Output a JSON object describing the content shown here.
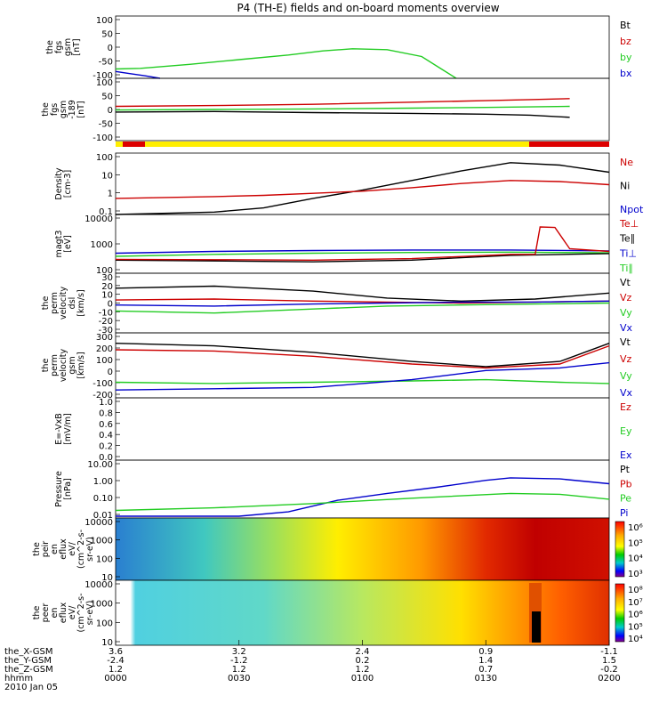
{
  "title": "P4 (TH-E) fields and on-board moments overview",
  "colors": {
    "black": "#000000",
    "red": "#cc0000",
    "green": "#22cc22",
    "blue": "#0000cc",
    "yellow": "#ffee00"
  },
  "chart_data": [
    {
      "id": "fgs-bt",
      "type": "line",
      "ylabel": [
        "the",
        "fgs",
        "gsm",
        "[nT]"
      ],
      "yticks": [
        "100",
        "50",
        "0",
        "-50",
        "-100"
      ],
      "ylim": [
        -100,
        100
      ],
      "legend": [
        {
          "label": "Bt",
          "color": "#000000"
        },
        {
          "label": "bz",
          "color": "#cc0000"
        },
        {
          "label": "by",
          "color": "#22cc22"
        },
        {
          "label": "bx",
          "color": "#0000cc"
        }
      ],
      "series": [
        {
          "name": "by",
          "color": "#22cc22",
          "x": [
            0,
            0.05,
            0.15,
            0.25,
            0.35,
            0.42,
            0.48,
            0.55,
            0.62,
            0.66,
            0.69
          ],
          "y": [
            -70,
            -68,
            -55,
            -40,
            -25,
            -12,
            -5,
            -8,
            -30,
            -70,
            -100
          ]
        },
        {
          "name": "bx",
          "color": "#0000cc",
          "x": [
            0,
            0.03,
            0.06,
            0.09
          ],
          "y": [
            -78,
            -85,
            -92,
            -100
          ]
        }
      ]
    },
    {
      "id": "fgs-gsm",
      "type": "line",
      "ylabel": [
        "the",
        "fgs",
        "gsm",
        "-189",
        "[nT]"
      ],
      "yticks": [
        "100",
        "50",
        "0",
        "-50",
        "-100"
      ],
      "ylim": [
        -120,
        120
      ],
      "series": [
        {
          "name": "bz",
          "color": "#cc0000",
          "x": [
            0,
            0.2,
            0.4,
            0.6,
            0.75,
            0.84,
            0.92
          ],
          "y": [
            12,
            15,
            20,
            28,
            34,
            38,
            42
          ]
        },
        {
          "name": "by",
          "color": "#22cc22",
          "x": [
            0,
            0.2,
            0.4,
            0.6,
            0.75,
            0.84,
            0.92
          ],
          "y": [
            -2,
            0,
            2,
            5,
            8,
            10,
            12
          ]
        },
        {
          "name": "Bt",
          "color": "#000000",
          "x": [
            0,
            0.2,
            0.4,
            0.6,
            0.75,
            0.84,
            0.92
          ],
          "y": [
            -10,
            -8,
            -12,
            -15,
            -18,
            -22,
            -30
          ]
        }
      ]
    },
    {
      "id": "density",
      "type": "line",
      "ylabel": [
        "Density",
        "[cm-3]"
      ],
      "yticks": [
        "100",
        "10",
        "1",
        "0.1"
      ],
      "ylim": [
        0.01,
        300
      ],
      "yscale": "log",
      "legend": [
        {
          "label": "Ne",
          "color": "#cc0000"
        },
        {
          "label": "Ni",
          "color": "#000000"
        },
        {
          "label": "Npot",
          "color": "#0000cc"
        }
      ],
      "series": [
        {
          "name": "Ni",
          "color": "#000000",
          "x": [
            0,
            0.2,
            0.3,
            0.4,
            0.5,
            0.6,
            0.7,
            0.8,
            0.9,
            1
          ],
          "y": [
            0.01,
            0.015,
            0.03,
            0.15,
            0.6,
            3,
            15,
            60,
            40,
            12
          ]
        },
        {
          "name": "Ne",
          "color": "#cc0000",
          "x": [
            0,
            0.2,
            0.3,
            0.4,
            0.5,
            0.6,
            0.7,
            0.8,
            0.9,
            1
          ],
          "y": [
            0.15,
            0.2,
            0.25,
            0.35,
            0.5,
            0.9,
            1.8,
            3,
            2.5,
            1.5
          ]
        }
      ]
    },
    {
      "id": "temperature",
      "type": "line",
      "ylabel": [
        "magt3",
        "[eV]"
      ],
      "yticks": [
        "10000",
        "1000",
        "100"
      ],
      "ylim": [
        30,
        15000
      ],
      "yscale": "log",
      "legend": [
        {
          "label": "Te⊥",
          "color": "#cc0000"
        },
        {
          "label": "Te∥",
          "color": "#000000"
        },
        {
          "label": "Ti⊥",
          "color": "#0000cc"
        },
        {
          "label": "Ti∥",
          "color": "#22cc22"
        }
      ],
      "series": [
        {
          "name": "Ti⊥",
          "color": "#0000cc",
          "x": [
            0,
            0.2,
            0.4,
            0.6,
            0.8,
            1
          ],
          "y": [
            250,
            300,
            330,
            350,
            350,
            320
          ]
        },
        {
          "name": "Ti∥",
          "color": "#22cc22",
          "x": [
            0,
            0.2,
            0.4,
            0.6,
            0.8,
            1
          ],
          "y": [
            180,
            220,
            250,
            270,
            280,
            260
          ]
        },
        {
          "name": "Te∥",
          "color": "#000000",
          "x": [
            0,
            0.2,
            0.4,
            0.6,
            0.8,
            1
          ],
          "y": [
            120,
            110,
            100,
            120,
            200,
            240
          ]
        },
        {
          "name": "Te⊥",
          "color": "#cc0000",
          "x": [
            0,
            0.2,
            0.4,
            0.6,
            0.8,
            0.85,
            0.86,
            0.89,
            0.92,
            1
          ],
          "y": [
            130,
            125,
            120,
            140,
            220,
            220,
            4000,
            3800,
            400,
            300
          ]
        }
      ]
    },
    {
      "id": "perm-velocity",
      "type": "line",
      "ylabel": [
        "the",
        "perm",
        "velocity",
        "dsl",
        "[km/s]"
      ],
      "yticks": [
        "30",
        "20",
        "10",
        "0",
        "-10",
        "-20",
        "-30"
      ],
      "ylim": [
        -30,
        30
      ],
      "legend": [
        {
          "label": "Vt",
          "color": "#000000"
        },
        {
          "label": "Vz",
          "color": "#cc0000"
        },
        {
          "label": "Vy",
          "color": "#22cc22"
        },
        {
          "label": "Vx",
          "color": "#0000cc"
        }
      ],
      "series": [
        {
          "name": "Vt",
          "color": "#000000",
          "x": [
            0,
            0.2,
            0.4,
            0.55,
            0.7,
            0.85,
            1
          ],
          "y": [
            15,
            17,
            12,
            5,
            2,
            4,
            10
          ]
        },
        {
          "name": "Vz",
          "color": "#cc0000",
          "x": [
            0,
            0.2,
            0.4,
            0.55,
            0.7,
            0.85,
            1
          ],
          "y": [
            3,
            4,
            2,
            1,
            0,
            1,
            2
          ]
        },
        {
          "name": "Vx",
          "color": "#0000cc",
          "x": [
            0,
            0.2,
            0.4,
            0.55,
            0.7,
            0.85,
            1
          ],
          "y": [
            -2,
            -3,
            -1,
            0,
            1,
            1,
            2
          ]
        },
        {
          "name": "Vy",
          "color": "#22cc22",
          "x": [
            0,
            0.2,
            0.4,
            0.55,
            0.7,
            0.85,
            1
          ],
          "y": [
            -8,
            -10,
            -6,
            -3,
            -2,
            -1,
            0
          ]
        }
      ]
    },
    {
      "id": "perm-velocity-gsm",
      "type": "line",
      "ylabel": [
        "the",
        "perm",
        "velocity",
        "gsm",
        "[km/s]"
      ],
      "yticks": [
        "300",
        "200",
        "100",
        "0",
        "-100",
        "-200"
      ],
      "ylim": [
        -200,
        300
      ],
      "legend": [
        {
          "label": "Vt",
          "color": "#000000"
        },
        {
          "label": "Vz",
          "color": "#cc0000"
        },
        {
          "label": "Vy",
          "color": "#22cc22"
        },
        {
          "label": "Vx",
          "color": "#0000cc"
        }
      ],
      "series": [
        {
          "name": "Vt",
          "color": "#000000",
          "x": [
            0,
            0.2,
            0.4,
            0.6,
            0.75,
            0.9,
            1
          ],
          "y": [
            220,
            200,
            150,
            80,
            40,
            80,
            220
          ]
        },
        {
          "name": "Vz",
          "color": "#cc0000",
          "x": [
            0,
            0.2,
            0.4,
            0.6,
            0.75,
            0.9,
            1
          ],
          "y": [
            170,
            160,
            120,
            60,
            30,
            60,
            200
          ]
        },
        {
          "name": "Vy",
          "color": "#22cc22",
          "x": [
            0,
            0.2,
            0.4,
            0.6,
            0.75,
            0.9,
            1
          ],
          "y": [
            -80,
            -90,
            -80,
            -70,
            -60,
            -80,
            -90
          ]
        },
        {
          "name": "Vx",
          "color": "#0000cc",
          "x": [
            0,
            0.2,
            0.4,
            0.6,
            0.75,
            0.9,
            1
          ],
          "y": [
            -140,
            -130,
            -120,
            -60,
            10,
            30,
            70
          ]
        }
      ]
    },
    {
      "id": "efield",
      "type": "line",
      "ylabel": [
        "E=-VxB",
        "[mV/m]"
      ],
      "yticks": [
        "1.0",
        "0.8",
        "0.6",
        "0.4",
        "0.2",
        "0.0"
      ],
      "ylim": [
        0,
        1
      ],
      "legend": [
        {
          "label": "Ez",
          "color": "#cc0000"
        },
        {
          "label": "Ey",
          "color": "#22cc22"
        },
        {
          "label": "Ex",
          "color": "#0000cc"
        }
      ],
      "series": []
    },
    {
      "id": "pressure",
      "type": "line",
      "ylabel": [
        "Pressure",
        "[nPa]"
      ],
      "yticks": [
        "10.00",
        "1.00",
        "0.10",
        "0.01"
      ],
      "ylim": [
        0.003,
        30
      ],
      "yscale": "log",
      "legend": [
        {
          "label": "Pt",
          "color": "#000000"
        },
        {
          "label": "Pb",
          "color": "#cc0000"
        },
        {
          "label": "Pe",
          "color": "#22cc22"
        },
        {
          "label": "Pi",
          "color": "#0000cc"
        }
      ],
      "series": [
        {
          "name": "Pi",
          "color": "#0000cc",
          "x": [
            0,
            0.25,
            0.35,
            0.45,
            0.55,
            0.65,
            0.75,
            0.8,
            0.9,
            1
          ],
          "y": [
            0.004,
            0.004,
            0.008,
            0.05,
            0.15,
            0.4,
            1.2,
            1.8,
            1.5,
            0.7
          ]
        },
        {
          "name": "Pe",
          "color": "#22cc22",
          "x": [
            0,
            0.2,
            0.4,
            0.6,
            0.8,
            0.9,
            1
          ],
          "y": [
            0.01,
            0.015,
            0.03,
            0.07,
            0.15,
            0.13,
            0.06
          ]
        }
      ]
    },
    {
      "id": "peir-spectrogram",
      "type": "heatmap",
      "ylabel": [
        "the",
        "peir",
        "en",
        "eflux",
        "eV/",
        "(cm^2-s-",
        "sr-eV)"
      ],
      "yticks": [
        "10000",
        "1000",
        "100",
        "10"
      ],
      "colorbar": [
        "10⁶",
        "10⁵",
        "10⁴",
        "10³"
      ]
    },
    {
      "id": "peer-spectrogram",
      "type": "heatmap",
      "ylabel": [
        "the",
        "peer",
        "en",
        "eflux",
        "eV/",
        "(cm^2-s-",
        "sr-eV)"
      ],
      "yticks": [
        "10000",
        "1000",
        "100",
        "10"
      ],
      "colorbar": [
        "10⁸",
        "10⁷",
        "10⁶",
        "10⁵",
        "10⁴"
      ]
    }
  ],
  "xaxis": {
    "row_labels": [
      "the_X-GSM",
      "the_Y-GSM",
      "the_Z-GSM",
      "hhmm",
      "2010 Jan 05"
    ],
    "ticks": [
      {
        "x": "3.6",
        "y": "-2.4",
        "z": "1.2",
        "t": "0000"
      },
      {
        "x": "3.2",
        "y": "-1.2",
        "z": "1.2",
        "t": "0030"
      },
      {
        "x": "2.4",
        "y": "0.2",
        "z": "1.2",
        "t": "0100"
      },
      {
        "x": "0.9",
        "y": "1.4",
        "z": "0.7",
        "t": "0130"
      },
      {
        "x": "-1.1",
        "y": "1.5",
        "z": "-0.2",
        "t": "0200"
      }
    ]
  }
}
